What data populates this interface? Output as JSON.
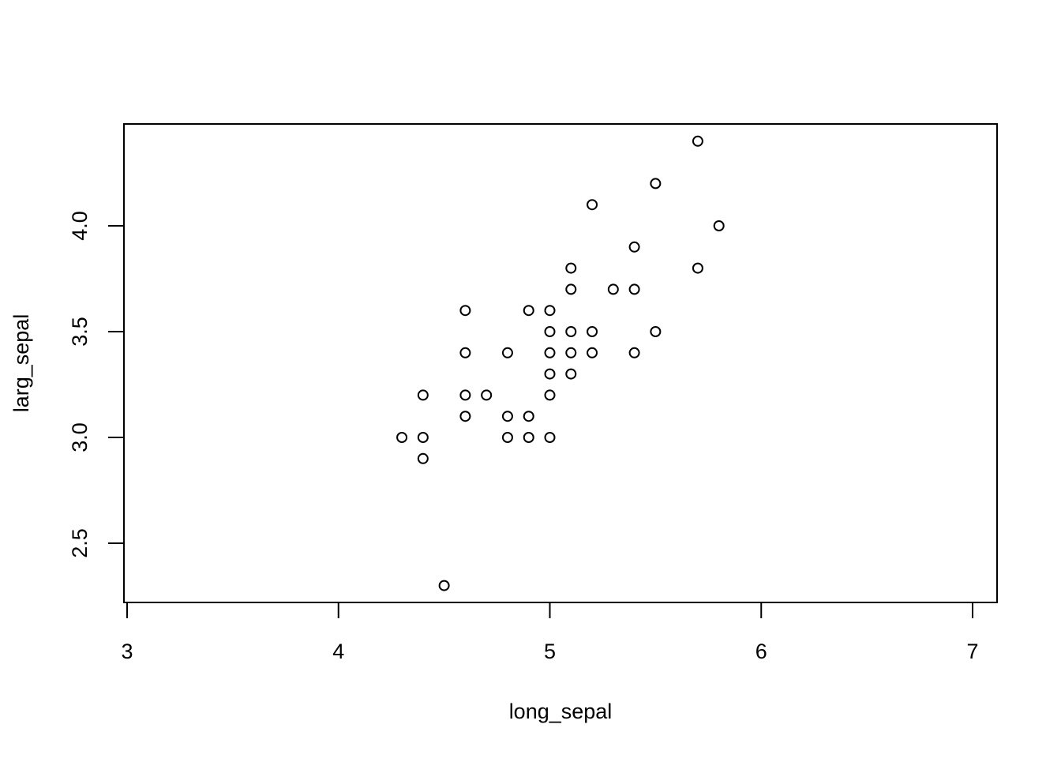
{
  "chart_data": {
    "type": "scatter",
    "title": "",
    "xlabel": "long_sepal",
    "ylabel": "larg_sepal",
    "xlim": [
      3,
      7
    ],
    "ylim": [
      2.2,
      4.45
    ],
    "x_ticks": [
      3,
      4,
      5,
      6,
      7
    ],
    "x_tick_labels": [
      "3",
      "4",
      "5",
      "6",
      "7"
    ],
    "y_ticks": [
      2.5,
      3.0,
      3.5,
      4.0
    ],
    "y_tick_labels": [
      "2.5",
      "3.0",
      "3.5",
      "4.0"
    ],
    "grid": false,
    "legend": "none",
    "marker": "open-circle",
    "point_color": "#000000",
    "points": [
      {
        "x": 4.3,
        "y": 3.0
      },
      {
        "x": 4.4,
        "y": 2.9
      },
      {
        "x": 4.4,
        "y": 3.0
      },
      {
        "x": 4.4,
        "y": 3.2
      },
      {
        "x": 4.5,
        "y": 2.3
      },
      {
        "x": 4.6,
        "y": 3.1
      },
      {
        "x": 4.6,
        "y": 3.2
      },
      {
        "x": 4.6,
        "y": 3.4
      },
      {
        "x": 4.6,
        "y": 3.6
      },
      {
        "x": 4.7,
        "y": 3.2
      },
      {
        "x": 4.8,
        "y": 3.0
      },
      {
        "x": 4.8,
        "y": 3.1
      },
      {
        "x": 4.8,
        "y": 3.4
      },
      {
        "x": 4.9,
        "y": 3.0
      },
      {
        "x": 4.9,
        "y": 3.1
      },
      {
        "x": 4.9,
        "y": 3.6
      },
      {
        "x": 5.0,
        "y": 3.0
      },
      {
        "x": 5.0,
        "y": 3.2
      },
      {
        "x": 5.0,
        "y": 3.3
      },
      {
        "x": 5.0,
        "y": 3.4
      },
      {
        "x": 5.0,
        "y": 3.5
      },
      {
        "x": 5.0,
        "y": 3.6
      },
      {
        "x": 5.1,
        "y": 3.3
      },
      {
        "x": 5.1,
        "y": 3.4
      },
      {
        "x": 5.1,
        "y": 3.5
      },
      {
        "x": 5.1,
        "y": 3.7
      },
      {
        "x": 5.1,
        "y": 3.8
      },
      {
        "x": 5.2,
        "y": 3.4
      },
      {
        "x": 5.2,
        "y": 3.5
      },
      {
        "x": 5.2,
        "y": 4.1
      },
      {
        "x": 5.3,
        "y": 3.7
      },
      {
        "x": 5.4,
        "y": 3.4
      },
      {
        "x": 5.4,
        "y": 3.7
      },
      {
        "x": 5.4,
        "y": 3.9
      },
      {
        "x": 5.5,
        "y": 3.5
      },
      {
        "x": 5.5,
        "y": 4.2
      },
      {
        "x": 5.7,
        "y": 3.8
      },
      {
        "x": 5.7,
        "y": 4.4
      },
      {
        "x": 5.8,
        "y": 4.0
      }
    ]
  }
}
